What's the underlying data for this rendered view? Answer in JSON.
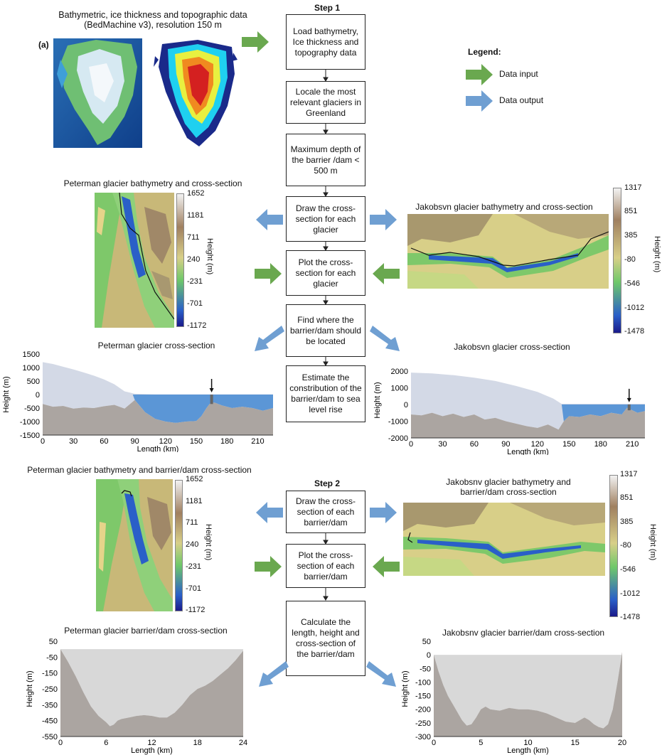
{
  "header": {
    "data_source": "Bathymetric, ice thickness and topographic data",
    "data_source2": "(BedMachine v3), resolution 150 m",
    "panel_label": "(a)"
  },
  "legend": {
    "title": "Legend:",
    "input_label": "Data input",
    "output_label": "Data output",
    "input_color": "#6aa84f",
    "output_color": "#6f9fd2"
  },
  "step1": {
    "label": "Step 1",
    "boxes": [
      "Load bathymetry, Ice thickness and topography data",
      "Locale the most relevant glaciers in Greenland",
      "Maximum depth of the barrier /dam < 500 m",
      "Draw the cross-section for each glacier",
      "Plot the cross-section for each glacier",
      "Find where the barrier/dam should be located",
      "Estimate the constribution of the barrier/dam to sea level rise"
    ]
  },
  "step2": {
    "label": "Step 2",
    "boxes": [
      "Draw the cross-section of each barrier/dam",
      "Plot the cross-section of each barrier/dam",
      "Calculate the length, height and cross-section of the barrier/dam"
    ]
  },
  "maps": {
    "peterman1_title": "Peterman glacier bathymetry and cross-section",
    "jakob1_title": "Jakobsvn glacier bathymetry and cross-section",
    "peterman2_title": "Peterman glacier bathymetry and barrier/dam cross-section",
    "jakob2_title_l1": "Jakobsnv glacier bathymetry and",
    "jakob2_title_l2": "barrier/dam cross-section",
    "peterman_cbar": [
      "1652",
      "1181",
      "711",
      "240",
      "-231",
      "-701",
      "-1172"
    ],
    "jakob_cbar": [
      "1317",
      "851",
      "385",
      "-80",
      "-546",
      "-1012",
      "-1478"
    ],
    "cbar_label": "Height (m)"
  },
  "chart_data": [
    {
      "type": "area",
      "title": "Peterman glacier cross-section",
      "xlabel": "Length (km)",
      "ylabel": "Height (m)",
      "xticks": [
        "0",
        "30",
        "60",
        "90",
        "120",
        "150",
        "180",
        "210"
      ],
      "yticks": [
        "1500",
        "1000",
        "500",
        "0",
        "-500",
        "-1000",
        "-1500"
      ],
      "xlim": [
        0,
        225
      ],
      "ylim": [
        -1500,
        1500
      ],
      "ice_surface": {
        "x": [
          0,
          10,
          20,
          30,
          40,
          50,
          60,
          70,
          80,
          90,
          100,
          110,
          120,
          130,
          140,
          150,
          160,
          165,
          225
        ],
        "y": [
          1200,
          1130,
          1030,
          930,
          820,
          700,
          560,
          380,
          120,
          30,
          20,
          10,
          10,
          10,
          10,
          10,
          10,
          10,
          10
        ]
      },
      "bed": {
        "x": [
          0,
          10,
          20,
          30,
          40,
          50,
          60,
          70,
          80,
          90,
          100,
          110,
          120,
          130,
          140,
          150,
          155,
          160,
          163,
          165,
          168,
          175,
          185,
          195,
          205,
          215,
          225
        ],
        "y": [
          -350,
          -450,
          -420,
          -520,
          -480,
          -500,
          -430,
          -380,
          -520,
          -200,
          -650,
          -900,
          -1000,
          -1050,
          -1000,
          -980,
          -800,
          -500,
          -350,
          -300,
          -300,
          -400,
          -500,
          -450,
          -500,
          -600,
          -500
        ]
      },
      "water_start_x": 88,
      "barrier_x": 165
    },
    {
      "type": "area",
      "title": "Jakobsvn glacier cross-section",
      "xlabel": "Length (km)",
      "ylabel": "Height (m)",
      "xticks": [
        "0",
        "30",
        "60",
        "90",
        "120",
        "150",
        "180",
        "210"
      ],
      "yticks": [
        "2000",
        "1000",
        "0",
        "-1000",
        "-2000"
      ],
      "xlim": [
        0,
        222
      ],
      "ylim": [
        -2000,
        2500
      ],
      "ice_surface": {
        "x": [
          0,
          20,
          40,
          60,
          80,
          100,
          120,
          135,
          143,
          222
        ],
        "y": [
          1900,
          1850,
          1750,
          1600,
          1400,
          1100,
          750,
          350,
          30,
          30
        ]
      },
      "bed": {
        "x": [
          0,
          10,
          20,
          30,
          40,
          50,
          60,
          70,
          80,
          90,
          100,
          110,
          120,
          130,
          140,
          145,
          150,
          160,
          170,
          180,
          190,
          200,
          205,
          210,
          215,
          222
        ],
        "y": [
          -600,
          -650,
          -500,
          -700,
          -550,
          -750,
          -600,
          -900,
          -800,
          -1000,
          -1150,
          -1300,
          -1400,
          -1200,
          -1500,
          -1000,
          -700,
          -750,
          -600,
          -700,
          -500,
          -600,
          -200,
          -350,
          -500,
          -400
        ]
      },
      "water_start_x": 143,
      "barrier_x": 207
    },
    {
      "type": "area",
      "title": "Peterman glacier barrier/dam cross-section",
      "xlabel": "Length (km)",
      "ylabel": "Height (m)",
      "xticks": [
        "0",
        "6",
        "12",
        "18",
        "24"
      ],
      "yticks": [
        "50",
        "-50",
        "-150",
        "-250",
        "-350",
        "-450",
        "-550"
      ],
      "xlim": [
        0,
        24
      ],
      "ylim": [
        -550,
        50
      ],
      "bed": {
        "x": [
          0,
          1,
          2,
          3,
          4,
          5,
          6,
          6.5,
          7,
          7.5,
          8,
          9,
          10,
          11,
          12,
          13,
          14,
          15,
          16,
          17,
          18,
          19,
          20,
          21,
          22,
          23,
          24
        ],
        "y": [
          0,
          -80,
          -170,
          -270,
          -360,
          -420,
          -460,
          -485,
          -475,
          -450,
          -440,
          -430,
          -420,
          -415,
          -420,
          -430,
          -430,
          -400,
          -350,
          -290,
          -250,
          -230,
          -200,
          -160,
          -120,
          -70,
          -10
        ]
      }
    },
    {
      "type": "area",
      "title": "Jakobsnv glacier barrier/dam cross-section",
      "xlabel": "Length (km)",
      "ylabel": "Height (m)",
      "xticks": [
        "0",
        "5",
        "10",
        "15",
        "20"
      ],
      "yticks": [
        "50",
        "0",
        "-50",
        "-100",
        "-150",
        "-200",
        "-250",
        "-300"
      ],
      "xlim": [
        0,
        20
      ],
      "ylim": [
        -300,
        50
      ],
      "bed": {
        "x": [
          0,
          0.5,
          1,
          1.5,
          2,
          2.5,
          3,
          3.5,
          4,
          4.5,
          5,
          5.5,
          6,
          7,
          8,
          9,
          10,
          11,
          12,
          13,
          14,
          15,
          15.5,
          16,
          16.5,
          17,
          17.5,
          18,
          18.5,
          19,
          19.5,
          20
        ],
        "y": [
          0,
          -60,
          -110,
          -150,
          -180,
          -210,
          -240,
          -260,
          -255,
          -230,
          -200,
          -190,
          -200,
          -205,
          -195,
          -200,
          -200,
          -205,
          -215,
          -230,
          -245,
          -250,
          -240,
          -230,
          -240,
          -255,
          -265,
          -270,
          -255,
          -200,
          -100,
          10
        ]
      }
    }
  ]
}
